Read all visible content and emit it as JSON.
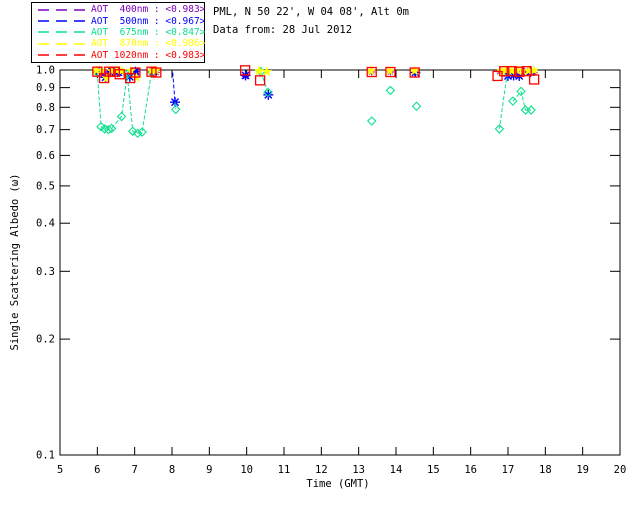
{
  "header": {
    "site_line": "PML, N 50 22', W 04 08', Alt 0m",
    "date_line": "Data from: 28 Jul 2012"
  },
  "legend": {
    "entries": [
      {
        "id": "aot-400nm",
        "label": "AOT  400nm : <0.983>",
        "color": "#7d00be"
      },
      {
        "id": "aot-500nm",
        "label": "AOT  500nm : <0.967>",
        "color": "#0000ff"
      },
      {
        "id": "aot-675nm",
        "label": "AOT  675nm : <0.847>",
        "color": "#0ce08c"
      },
      {
        "id": "aot-870nm",
        "label": "AOT  870nm : <0.986>",
        "color": "#ffff00"
      },
      {
        "id": "aot-1020nm",
        "label": "AOT 1020nm : <0.983>",
        "color": "#ff0000"
      }
    ]
  },
  "chart_data": {
    "type": "scatter",
    "title": "",
    "xlabel": "Time (GMT)",
    "ylabel": "Single Scattering Albedo (ω)",
    "xlim": [
      5,
      20
    ],
    "ylim": [
      0.1,
      1.0
    ],
    "yscale": "log",
    "grid": false,
    "legend_position": "top-left",
    "xticks": [
      5,
      6,
      7,
      8,
      9,
      10,
      11,
      12,
      13,
      14,
      15,
      16,
      17,
      18,
      19,
      20
    ],
    "ytick_values": [
      1.0,
      0.9,
      0.8,
      0.7,
      0.6,
      0.5,
      0.4,
      0.3,
      0.2,
      0.1
    ],
    "ytick_labels": [
      "1.0",
      "0.9",
      "0.8",
      "0.7",
      "0.6",
      "0.5",
      "0.4",
      "0.3",
      "0.2",
      "0.1"
    ],
    "series": [
      {
        "name": "AOT 400nm",
        "mean": 0.983,
        "color": "#7d00be",
        "marker": "asterisk",
        "marker_size": 3.5,
        "linestyle": "dashed",
        "points": [
          [
            6.0,
            0.99
          ],
          [
            6.15,
            0.985
          ],
          [
            6.3,
            0.99
          ],
          [
            6.45,
            0.985
          ],
          [
            6.6,
            0.98
          ],
          [
            6.9,
            0.985
          ],
          [
            7.05,
            0.99
          ],
          [
            7.45,
            0.99
          ],
          [
            7.58,
            0.985
          ],
          [
            9.97,
            0.962
          ],
          [
            13.35,
            0.988
          ],
          [
            13.85,
            0.988
          ],
          [
            14.5,
            0.985
          ],
          [
            16.78,
            0.99
          ],
          [
            17.0,
            0.988
          ],
          [
            17.2,
            0.985
          ],
          [
            17.45,
            0.99
          ],
          [
            17.7,
            0.985
          ]
        ],
        "lines": []
      },
      {
        "name": "AOT 500nm",
        "mean": 0.967,
        "color": "#0000ff",
        "marker": "asterisk-large",
        "marker_size": 5,
        "linestyle": "dashed",
        "points": [
          [
            6.05,
            0.992
          ],
          [
            6.22,
            0.957
          ],
          [
            6.4,
            0.99
          ],
          [
            6.55,
            0.987
          ],
          [
            6.87,
            0.96
          ],
          [
            7.02,
            0.99
          ],
          [
            7.5,
            0.99
          ],
          [
            8.08,
            0.825
          ],
          [
            9.97,
            0.968
          ],
          [
            10.58,
            0.862
          ],
          [
            14.52,
            0.985
          ],
          [
            17.0,
            0.965
          ],
          [
            17.15,
            0.968
          ],
          [
            17.3,
            0.965
          ],
          [
            17.6,
            0.988
          ]
        ],
        "lines": [
          [
            [
              8.02,
              0.985
            ],
            [
              8.08,
              0.825
            ]
          ]
        ]
      },
      {
        "name": "AOT 675nm",
        "mean": 0.847,
        "color": "#0ce08c",
        "marker": "diamond",
        "marker_size": 4,
        "linestyle": "dashed",
        "points": [
          [
            6.0,
            0.985
          ],
          [
            6.1,
            0.712
          ],
          [
            6.2,
            0.703
          ],
          [
            6.3,
            0.7
          ],
          [
            6.38,
            0.705
          ],
          [
            6.65,
            0.757
          ],
          [
            6.8,
            0.975
          ],
          [
            6.95,
            0.693
          ],
          [
            7.08,
            0.685
          ],
          [
            7.2,
            0.69
          ],
          [
            7.45,
            0.985
          ],
          [
            8.1,
            0.79
          ],
          [
            10.38,
            0.99
          ],
          [
            10.57,
            0.875
          ],
          [
            13.35,
            0.737
          ],
          [
            13.85,
            0.885
          ],
          [
            14.55,
            0.805
          ],
          [
            16.98,
            0.985
          ],
          [
            16.77,
            0.703
          ],
          [
            17.13,
            0.83
          ],
          [
            17.35,
            0.88
          ],
          [
            17.47,
            0.787
          ],
          [
            17.62,
            0.787
          ]
        ],
        "lines": [
          [
            [
              6.0,
              0.985
            ],
            [
              6.1,
              0.712
            ],
            [
              6.2,
              0.703
            ],
            [
              6.3,
              0.7
            ],
            [
              6.38,
              0.705
            ],
            [
              6.65,
              0.757
            ],
            [
              6.8,
              0.975
            ],
            [
              6.95,
              0.693
            ],
            [
              7.08,
              0.685
            ],
            [
              7.2,
              0.69
            ],
            [
              7.45,
              0.985
            ]
          ],
          [
            [
              8.08,
              0.825
            ],
            [
              8.1,
              0.79
            ]
          ],
          [
            [
              10.38,
              0.99
            ],
            [
              10.57,
              0.875
            ]
          ],
          [
            [
              16.98,
              0.985
            ],
            [
              16.77,
              0.703
            ]
          ],
          [
            [
              17.13,
              0.83
            ],
            [
              17.35,
              0.88
            ],
            [
              17.47,
              0.787
            ],
            [
              17.62,
              0.787
            ]
          ]
        ]
      },
      {
        "name": "AOT 870nm",
        "mean": 0.986,
        "color": "#ffff00",
        "marker": "star",
        "marker_size": 4.5,
        "linestyle": "dashed",
        "points": [
          [
            5.98,
            0.998
          ],
          [
            6.12,
            0.998
          ],
          [
            6.25,
            0.952
          ],
          [
            6.38,
            0.995
          ],
          [
            6.52,
            0.997
          ],
          [
            6.65,
            0.995
          ],
          [
            6.9,
            0.995
          ],
          [
            7.05,
            0.955
          ],
          [
            7.45,
            0.997
          ],
          [
            7.57,
            0.998
          ],
          [
            10.33,
            0.995
          ],
          [
            10.54,
            0.99
          ],
          [
            13.33,
            0.995
          ],
          [
            13.83,
            0.995
          ],
          [
            14.5,
            0.995
          ],
          [
            16.82,
            0.995
          ],
          [
            16.95,
            0.998
          ],
          [
            17.1,
            0.995
          ],
          [
            17.25,
            0.998
          ],
          [
            17.4,
            0.995
          ],
          [
            17.55,
            0.996
          ],
          [
            17.7,
            0.998
          ]
        ],
        "lines": []
      },
      {
        "name": "AOT 1020nm",
        "mean": 0.983,
        "color": "#ff0000",
        "marker": "square",
        "marker_size": 4.5,
        "linestyle": "dashed",
        "points": [
          [
            6.0,
            0.99
          ],
          [
            6.18,
            0.953
          ],
          [
            6.32,
            0.99
          ],
          [
            6.47,
            0.99
          ],
          [
            6.6,
            0.975
          ],
          [
            6.88,
            0.953
          ],
          [
            7.02,
            0.985
          ],
          [
            7.45,
            0.99
          ],
          [
            7.58,
            0.985
          ],
          [
            9.96,
            0.998
          ],
          [
            10.36,
            0.94
          ],
          [
            13.35,
            0.988
          ],
          [
            13.85,
            0.988
          ],
          [
            14.5,
            0.985
          ],
          [
            16.72,
            0.965
          ],
          [
            16.9,
            0.993
          ],
          [
            17.1,
            0.993
          ],
          [
            17.3,
            0.99
          ],
          [
            17.5,
            0.993
          ],
          [
            17.7,
            0.945
          ]
        ],
        "lines": []
      }
    ]
  }
}
